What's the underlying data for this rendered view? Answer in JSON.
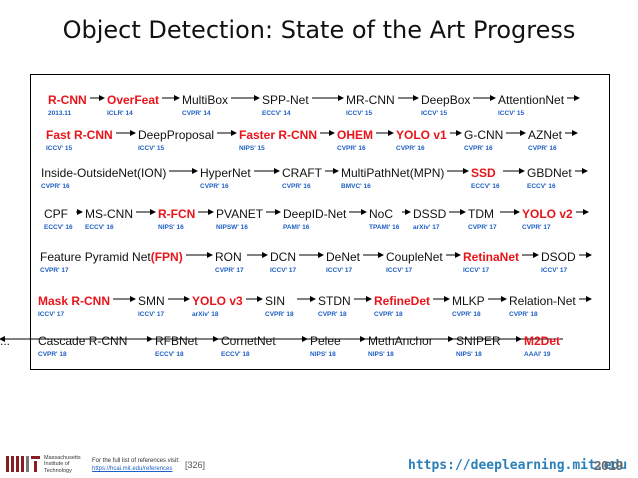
{
  "title": "Object Detection: State of the Art Progress",
  "rows": [
    [
      {
        "name": "R-CNN",
        "venue": "2013.11",
        "hl": true
      },
      {
        "name": "OverFeat",
        "venue": "ICLR' 14",
        "hl": true
      },
      {
        "name": "MultiBox",
        "venue": "CVPR' 14"
      },
      {
        "name": "SPP-Net",
        "venue": "ECCV' 14"
      },
      {
        "name": "MR-CNN",
        "venue": "ICCV' 15"
      },
      {
        "name": "DeepBox",
        "venue": "ICCV' 15"
      },
      {
        "name": "AttentionNet",
        "venue": "ICCV' 15"
      }
    ],
    [
      {
        "name": "Fast R-CNN",
        "venue": "ICCV' 15",
        "hl": true
      },
      {
        "name": "DeepProposal",
        "venue": "ICCV' 15"
      },
      {
        "name": "Faster R-CNN",
        "venue": "NIPS' 15",
        "hl": true
      },
      {
        "name": "OHEM",
        "venue": "CVPR' 16",
        "hl": true
      },
      {
        "name": "YOLO v1",
        "venue": "CVPR' 16",
        "hl": true
      },
      {
        "name": "G-CNN",
        "venue": "CVPR' 16"
      },
      {
        "name": "AZNet",
        "venue": "CVPR' 16"
      }
    ],
    [
      {
        "name": "Inside-OutsideNet(ION)",
        "venue": "CVPR' 16"
      },
      {
        "name": "HyperNet",
        "venue": "CVPR' 16"
      },
      {
        "name": "CRAFT",
        "venue": "CVPR' 16"
      },
      {
        "name": "MultiPathNet(MPN)",
        "venue": "BMVC' 16"
      },
      {
        "name": "SSD",
        "venue": "ECCV' 16",
        "hl": true
      },
      {
        "name": "GBDNet",
        "venue": "ECCV' 16"
      }
    ],
    [
      {
        "name": "CPF",
        "venue": "ECCV' 16"
      },
      {
        "name": "MS-CNN",
        "venue": "ECCV' 16"
      },
      {
        "name": "R-FCN",
        "venue": "NIPS' 16",
        "hl": true
      },
      {
        "name": "PVANET",
        "venue": "NIPSW' 16"
      },
      {
        "name": "DeepID-Net",
        "venue": "PAMI' 16"
      },
      {
        "name": "NoC",
        "venue": "TPAMI' 16"
      },
      {
        "name": "DSSD",
        "venue": "arXiv' 17"
      },
      {
        "name": "TDM",
        "venue": "CVPR' 17"
      },
      {
        "name": "YOLO v2",
        "venue": "CVPR' 17",
        "hl": true
      }
    ],
    [
      {
        "name": "Feature Pyramid Net",
        "name_hl": "(FPN)",
        "venue": "CVPR' 17"
      },
      {
        "name": "RON",
        "venue": "CVPR' 17"
      },
      {
        "name": "DCN",
        "venue": "ICCV' 17"
      },
      {
        "name": "DeNet",
        "venue": "ICCV' 17"
      },
      {
        "name": "CoupleNet",
        "venue": "ICCV' 17"
      },
      {
        "name": "RetinaNet",
        "venue": "ICCV' 17",
        "hl": true
      },
      {
        "name": "DSOD",
        "venue": "ICCV' 17"
      }
    ],
    [
      {
        "name": "Mask R-CNN",
        "venue": "ICCV' 17",
        "hl": true
      },
      {
        "name": "SMN",
        "venue": "ICCV' 17"
      },
      {
        "name": "YOLO v3",
        "venue": "arXiv' 18",
        "hl": true
      },
      {
        "name": "SIN",
        "venue": "CVPR' 18"
      },
      {
        "name": "STDN",
        "venue": "CVPR' 18"
      },
      {
        "name": "RefineDet",
        "venue": "CVPR' 18",
        "hl": true
      },
      {
        "name": "MLKP",
        "venue": "CVPR' 18"
      },
      {
        "name": "Relation-Net",
        "venue": "CVPR' 18"
      }
    ],
    [
      {
        "name": "Cascade R-CNN",
        "venue": "CVPR' 18"
      },
      {
        "name": "RFBNet",
        "venue": "ECCV' 18"
      },
      {
        "name": "CornetNet",
        "venue": "ECCV' 18"
      },
      {
        "name": "Pelee",
        "venue": "NIPS' 18"
      },
      {
        "name": "MethAnchor",
        "venue": "NIPS' 18"
      },
      {
        "name": "SNIPER",
        "venue": "NIPS' 18"
      },
      {
        "name": "M2Det",
        "venue": "AAAI' 19",
        "hl": true
      },
      {
        "name": "...",
        "venue": ""
      }
    ]
  ],
  "footer": {
    "logo_text": [
      "Massachusetts",
      "Institute of",
      "Technology"
    ],
    "ref_note": "For the full list of references visit:",
    "ref_link": "https://hcai.mit.edu/references",
    "ref_num": "[326]",
    "url": "https://deeplearning.mit.edu",
    "year": "2019"
  }
}
